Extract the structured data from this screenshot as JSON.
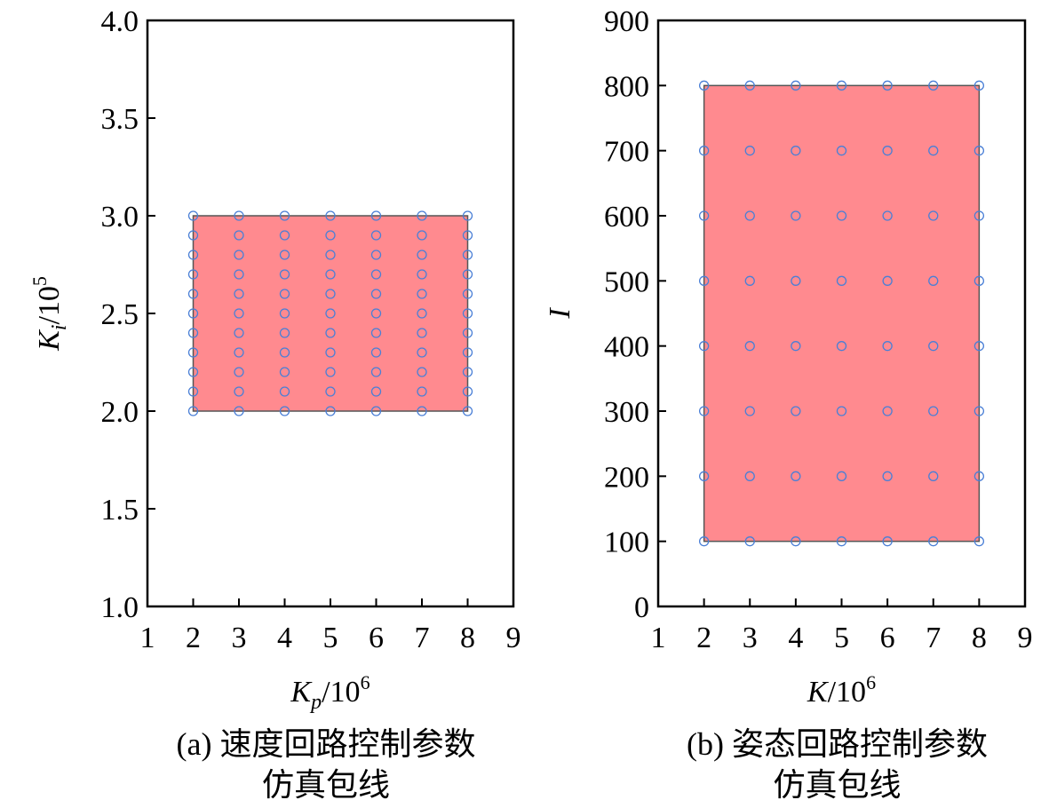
{
  "chart_data": [
    {
      "type": "scatter",
      "xlabel": {
        "base": "K",
        "sub": "p",
        "rest": "/10",
        "sup": "6"
      },
      "ylabel": {
        "base": "K",
        "sub": "i",
        "rest": "/10",
        "sup": "5"
      },
      "caption": [
        "(a) 速度回路控制参数",
        "仿真包线"
      ],
      "xlim": [
        1,
        9
      ],
      "xticks": [
        1,
        2,
        3,
        4,
        5,
        6,
        7,
        8,
        9
      ],
      "ylim": [
        1,
        4
      ],
      "yticks": [
        {
          "value": 1,
          "label": "1.0"
        },
        1.5,
        {
          "value": 2,
          "label": "2.0"
        },
        2.5,
        {
          "value": 3,
          "label": "3.0"
        },
        3.5,
        {
          "value": 4,
          "label": "4.0"
        }
      ],
      "region": {
        "x": [
          2,
          8
        ],
        "y": [
          2,
          3
        ],
        "color": "#ff8a8f"
      },
      "series": [
        {
          "color": "#4a7fd6",
          "x": [
            2,
            2,
            2,
            2,
            2,
            2,
            2,
            2,
            2,
            2,
            2,
            3,
            3,
            3,
            3,
            3,
            3,
            3,
            3,
            3,
            3,
            3,
            4,
            4,
            4,
            4,
            4,
            4,
            4,
            4,
            4,
            4,
            4,
            5,
            5,
            5,
            5,
            5,
            5,
            5,
            5,
            5,
            5,
            5,
            6,
            6,
            6,
            6,
            6,
            6,
            6,
            6,
            6,
            6,
            6,
            7,
            7,
            7,
            7,
            7,
            7,
            7,
            7,
            7,
            7,
            7,
            8,
            8,
            8,
            8,
            8,
            8,
            8,
            8,
            8,
            8,
            8
          ],
          "values": [
            2,
            2.1,
            2.2,
            2.3,
            2.4,
            2.5,
            2.6,
            2.7,
            2.8,
            2.9,
            3,
            2,
            2.1,
            2.2,
            2.3,
            2.4,
            2.5,
            2.6,
            2.7,
            2.8,
            2.9,
            3,
            2,
            2.1,
            2.2,
            2.3,
            2.4,
            2.5,
            2.6,
            2.7,
            2.8,
            2.9,
            3,
            2,
            2.1,
            2.2,
            2.3,
            2.4,
            2.5,
            2.6,
            2.7,
            2.8,
            2.9,
            3,
            2,
            2.1,
            2.2,
            2.3,
            2.4,
            2.5,
            2.6,
            2.7,
            2.8,
            2.9,
            3,
            2,
            2.1,
            2.2,
            2.3,
            2.4,
            2.5,
            2.6,
            2.7,
            2.8,
            2.9,
            3,
            2,
            2.1,
            2.2,
            2.3,
            2.4,
            2.5,
            2.6,
            2.7,
            2.8,
            2.9,
            3
          ]
        }
      ]
    },
    {
      "type": "scatter",
      "xlabel": {
        "base": "K",
        "rest": "/10",
        "sup": "6"
      },
      "ylabel": {
        "base": "I"
      },
      "caption": [
        "(b) 姿态回路控制参数",
        "仿真包线"
      ],
      "xlim": [
        1,
        9
      ],
      "xticks": [
        1,
        2,
        3,
        4,
        5,
        6,
        7,
        8,
        9
      ],
      "ylim": [
        0,
        900
      ],
      "yticks": [
        0,
        100,
        200,
        300,
        400,
        500,
        600,
        700,
        800,
        900
      ],
      "region": {
        "x": [
          2,
          8
        ],
        "y": [
          100,
          800
        ],
        "color": "#ff8a8f"
      },
      "series": [
        {
          "color": "#4a7fd6",
          "x": [
            2,
            2,
            2,
            2,
            2,
            2,
            2,
            2,
            3,
            3,
            3,
            3,
            3,
            3,
            3,
            3,
            4,
            4,
            4,
            4,
            4,
            4,
            4,
            4,
            5,
            5,
            5,
            5,
            5,
            5,
            5,
            5,
            6,
            6,
            6,
            6,
            6,
            6,
            6,
            6,
            7,
            7,
            7,
            7,
            7,
            7,
            7,
            7,
            8,
            8,
            8,
            8,
            8,
            8,
            8,
            8
          ],
          "values": [
            100,
            200,
            300,
            400,
            500,
            600,
            700,
            800,
            100,
            200,
            300,
            400,
            500,
            600,
            700,
            800,
            100,
            200,
            300,
            400,
            500,
            600,
            700,
            800,
            100,
            200,
            300,
            400,
            500,
            600,
            700,
            800,
            100,
            200,
            300,
            400,
            500,
            600,
            700,
            800,
            100,
            200,
            300,
            400,
            500,
            600,
            700,
            800,
            100,
            200,
            300,
            400,
            500,
            600,
            700,
            800
          ]
        }
      ]
    }
  ]
}
